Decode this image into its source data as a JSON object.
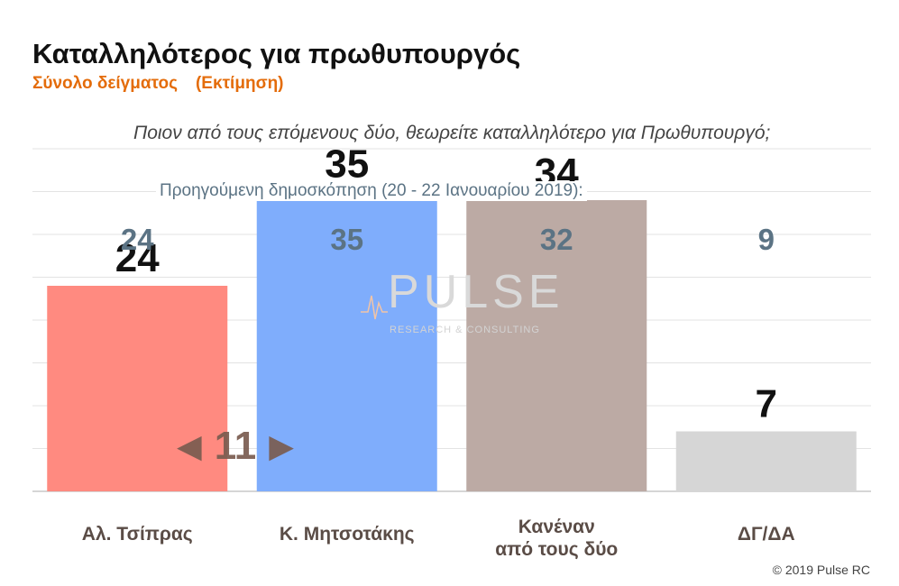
{
  "title": "Καταλληλότερος για πρωθυπουργός",
  "subtitle": {
    "sample": "Σύνολο δείγματος",
    "method": "(Εκτίμηση)",
    "color": "#e46c0a"
  },
  "question": "Ποιον από τους επόμενους δύο, θεωρείτε καταλληλότερο για Πρωθυπουργό;",
  "previous_label": "Προηγούμενη δημοσκόπηση (20 - 22 Ιανουαρίου 2019):",
  "difference": {
    "left_arrow": "◀",
    "value": "11",
    "right_arrow": "▶",
    "color": "#7a5c50"
  },
  "watermark": {
    "text": "PULSE",
    "sub": "RESEARCH & CONSULTING"
  },
  "copyright": "© 2019 Pulse RC",
  "chart_data": {
    "type": "bar",
    "categories": [
      [
        "Αλ. Τσίπρας"
      ],
      [
        "Κ. Μητσοτάκης"
      ],
      [
        "Κανέναν",
        "από τους δύο"
      ],
      [
        "ΔΓ/ΔΑ"
      ]
    ],
    "values": [
      24,
      35,
      34,
      7
    ],
    "previous_values": [
      24,
      35,
      32,
      9
    ],
    "colors": [
      "#ff8a80",
      "#7fadfc",
      "#bcaaa4",
      "#d6d6d6"
    ],
    "ylim": [
      0,
      40
    ],
    "grid": true,
    "label_color": "#111111",
    "previous_color": "#5b7384",
    "category_color": "#5a4c46"
  }
}
